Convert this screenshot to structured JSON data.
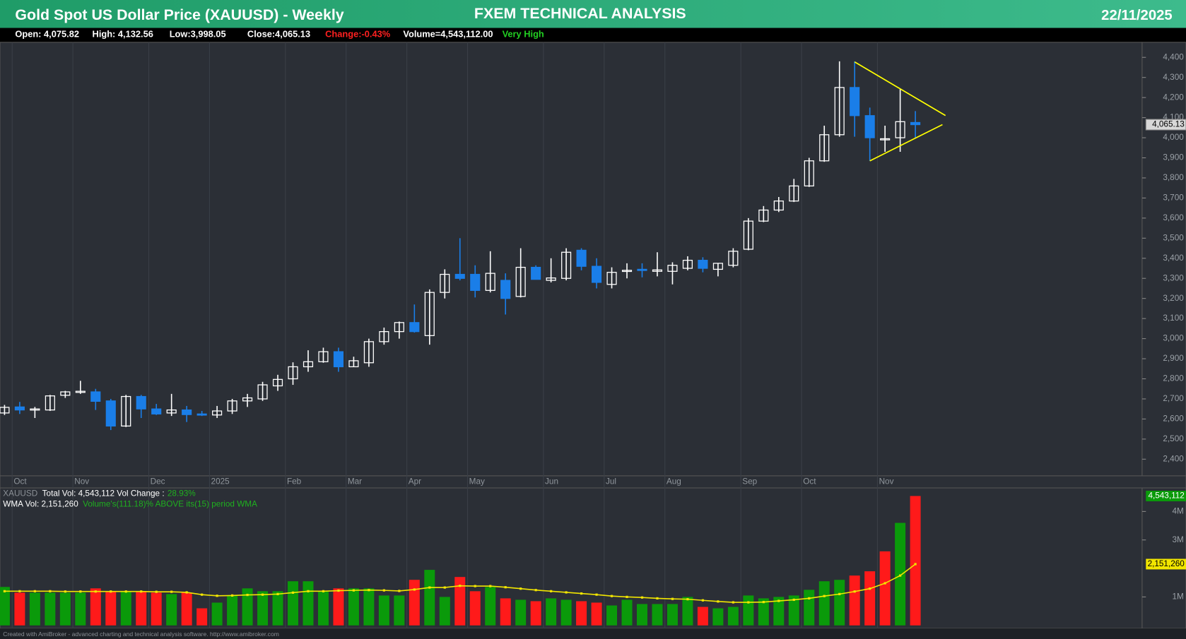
{
  "header": {
    "title": "Gold Spot US Dollar Price (XAUUSD) - Weekly",
    "center": "FXEM TECHNICAL ANALYSIS",
    "date": "22/11/2025",
    "info": [
      "Open: 4,075.82",
      "High: 4,132.56",
      "Low:3,998.05",
      "Close:4,065.13",
      "Change:-0.43%",
      "Volume=4,543,112.00",
      "Very High"
    ]
  },
  "volume_legend": [
    "XAUUSD",
    "Total Vol: 4,543,112 Vol Change :",
    "28.93%",
    "WMA Vol: 2,151,260",
    "Volume's(111.18)% ABOVE its(15) period WMA"
  ],
  "footer": "Created with AmiBroker - advanced charting and technical analysis software. http://www.amibroker.com",
  "chart_data": [
    {
      "type": "candlestick",
      "up_color": "#ffffff",
      "down_color": "#1a7ee8",
      "categories": [
        null,
        "Oct",
        null,
        null,
        null,
        "Nov",
        null,
        null,
        null,
        null,
        "Dec",
        null,
        null,
        null,
        "2025",
        null,
        null,
        null,
        null,
        "Feb",
        null,
        null,
        null,
        "Mar",
        null,
        null,
        null,
        "Apr",
        null,
        null,
        null,
        "May",
        null,
        null,
        null,
        null,
        "Jun",
        null,
        null,
        null,
        "Jul",
        null,
        null,
        null,
        "Aug",
        null,
        null,
        null,
        null,
        "Sep",
        null,
        null,
        null,
        "Oct",
        null,
        null,
        null,
        null,
        "Nov",
        null,
        null
      ],
      "open": [
        2630,
        2660,
        2645,
        2645,
        2718,
        2735,
        2735,
        2690,
        2565,
        2712,
        2650,
        2630,
        2645,
        2625,
        2620,
        2640,
        2690,
        2700,
        2765,
        2800,
        2860,
        2885,
        2935,
        2860,
        2880,
        2985,
        3035,
        3080,
        3015,
        3230,
        3320,
        3320,
        3240,
        3290,
        3210,
        3355,
        3290,
        3300,
        3440,
        3360,
        3270,
        3335,
        3345,
        3335,
        3335,
        3350,
        3390,
        3345,
        3365,
        3445,
        3585,
        3640,
        3685,
        3760,
        3885,
        4015,
        4250,
        4110,
        3995,
        4000,
        4075.82
      ],
      "high": [
        2670,
        2685,
        2660,
        2720,
        2740,
        2790,
        2750,
        2700,
        2720,
        2720,
        2675,
        2725,
        2665,
        2640,
        2665,
        2700,
        2725,
        2785,
        2820,
        2882,
        2942,
        2955,
        2955,
        2910,
        3000,
        3055,
        3085,
        3170,
        3245,
        3345,
        3500,
        3365,
        3435,
        3325,
        3450,
        3365,
        3400,
        3450,
        3450,
        3400,
        3355,
        3375,
        3375,
        3430,
        3380,
        3410,
        3405,
        3375,
        3450,
        3600,
        3660,
        3705,
        3795,
        3900,
        4060,
        4380,
        4380,
        4150,
        4060,
        4245,
        4132.56
      ],
      "low": [
        2620,
        2625,
        2605,
        2640,
        2705,
        2725,
        2645,
        2545,
        2560,
        2605,
        2620,
        2615,
        2585,
        2615,
        2605,
        2625,
        2660,
        2690,
        2740,
        2770,
        2835,
        2880,
        2835,
        2860,
        2860,
        2970,
        3000,
        3030,
        2970,
        3200,
        3290,
        3205,
        3230,
        3120,
        3205,
        3300,
        3280,
        3290,
        3340,
        3250,
        3250,
        3300,
        3305,
        3310,
        3270,
        3340,
        3330,
        3310,
        3355,
        3440,
        3580,
        3630,
        3680,
        3755,
        3880,
        4005,
        4005,
        3885,
        3930,
        3930,
        3998.05
      ],
      "close": [
        2658,
        2645,
        2650,
        2715,
        2735,
        2738,
        2688,
        2565,
        2712,
        2650,
        2625,
        2645,
        2622,
        2620,
        2640,
        2690,
        2705,
        2770,
        2797,
        2860,
        2885,
        2935,
        2860,
        2890,
        2985,
        3035,
        3080,
        3035,
        3230,
        3320,
        3300,
        3240,
        3325,
        3200,
        3355,
        3295,
        3302,
        3430,
        3360,
        3280,
        3330,
        3340,
        3340,
        3342,
        3365,
        3390,
        3350,
        3375,
        3435,
        3585,
        3640,
        3685,
        3760,
        3885,
        4015,
        4250,
        4110,
        4000,
        3995,
        4080,
        4065.13
      ],
      "ylim": [
        2317,
        4475
      ],
      "yticks": [
        {
          "value": 2400,
          "label": "2,400"
        },
        {
          "value": 2500,
          "label": "2,500"
        },
        {
          "value": 2600,
          "label": "2,600"
        },
        {
          "value": 2700,
          "label": "2,700"
        },
        {
          "value": 2800,
          "label": "2,800"
        },
        {
          "value": 2900,
          "label": "2,900"
        },
        {
          "value": 3000,
          "label": "3,000"
        },
        {
          "value": 3100,
          "label": "3,100"
        },
        {
          "value": 3200,
          "label": "3,200"
        },
        {
          "value": 3300,
          "label": "3,300"
        },
        {
          "value": 3400,
          "label": "3,400"
        },
        {
          "value": 3500,
          "label": "3,500"
        },
        {
          "value": 3600,
          "label": "3,600"
        },
        {
          "value": 3700,
          "label": "3,700"
        },
        {
          "value": 3800,
          "label": "3,800"
        },
        {
          "value": 3900,
          "label": "3,900"
        },
        {
          "value": 4000,
          "label": "4,000"
        },
        {
          "value": 4100,
          "label": "4,100"
        },
        {
          "value": 4200,
          "label": "4,200"
        },
        {
          "value": 4300,
          "label": "4,300"
        },
        {
          "value": 4400,
          "label": "4,400"
        }
      ],
      "last_price": {
        "value": 4065.13,
        "label": "4,065.13"
      }
    },
    {
      "type": "bar",
      "up_color": "#0a9a0a",
      "down_color": "#ff1a1a",
      "values": [
        1350000,
        1150000,
        1150000,
        1150000,
        1150000,
        1150000,
        1300000,
        1200000,
        1200000,
        1200000,
        1150000,
        1100000,
        1150000,
        600000,
        800000,
        1050000,
        1300000,
        1200000,
        1200000,
        1550000,
        1550000,
        1200000,
        1300000,
        1300000,
        1300000,
        1050000,
        1050000,
        1600000,
        1950000,
        1000000,
        1700000,
        1200000,
        1350000,
        950000,
        900000,
        850000,
        950000,
        900000,
        850000,
        800000,
        700000,
        900000,
        750000,
        750000,
        750000,
        1000000,
        650000,
        600000,
        650000,
        1050000,
        950000,
        1000000,
        1050000,
        1250000,
        1550000,
        1600000,
        1750000,
        1900000,
        2600000,
        3600000,
        4543112
      ],
      "wma": {
        "color": "#f2e600",
        "values": [
          1200000,
          1200000,
          1200000,
          1200000,
          1190000,
          1190000,
          1190000,
          1190000,
          1190000,
          1190000,
          1180000,
          1180000,
          1160000,
          1080000,
          1040000,
          1050000,
          1070000,
          1080000,
          1100000,
          1150000,
          1200000,
          1200000,
          1220000,
          1230000,
          1240000,
          1230000,
          1210000,
          1260000,
          1330000,
          1330000,
          1390000,
          1380000,
          1380000,
          1340000,
          1290000,
          1240000,
          1200000,
          1160000,
          1120000,
          1080000,
          1030000,
          1000000,
          980000,
          950000,
          930000,
          920000,
          880000,
          840000,
          810000,
          810000,
          820000,
          860000,
          900000,
          950000,
          1030000,
          1100000,
          1190000,
          1290000,
          1480000,
          1750000,
          2151260
        ]
      },
      "ylim": [
        0,
        4720000
      ],
      "yticks": [
        {
          "value": 1000000,
          "label": "1M"
        },
        {
          "value": 3000000,
          "label": "3M"
        },
        {
          "value": 4000000,
          "label": "4M"
        }
      ],
      "last_value": {
        "value": 4543112,
        "label": "4,543,112"
      },
      "wma_last": {
        "value": 2151260,
        "label": "2,151,260"
      }
    }
  ]
}
